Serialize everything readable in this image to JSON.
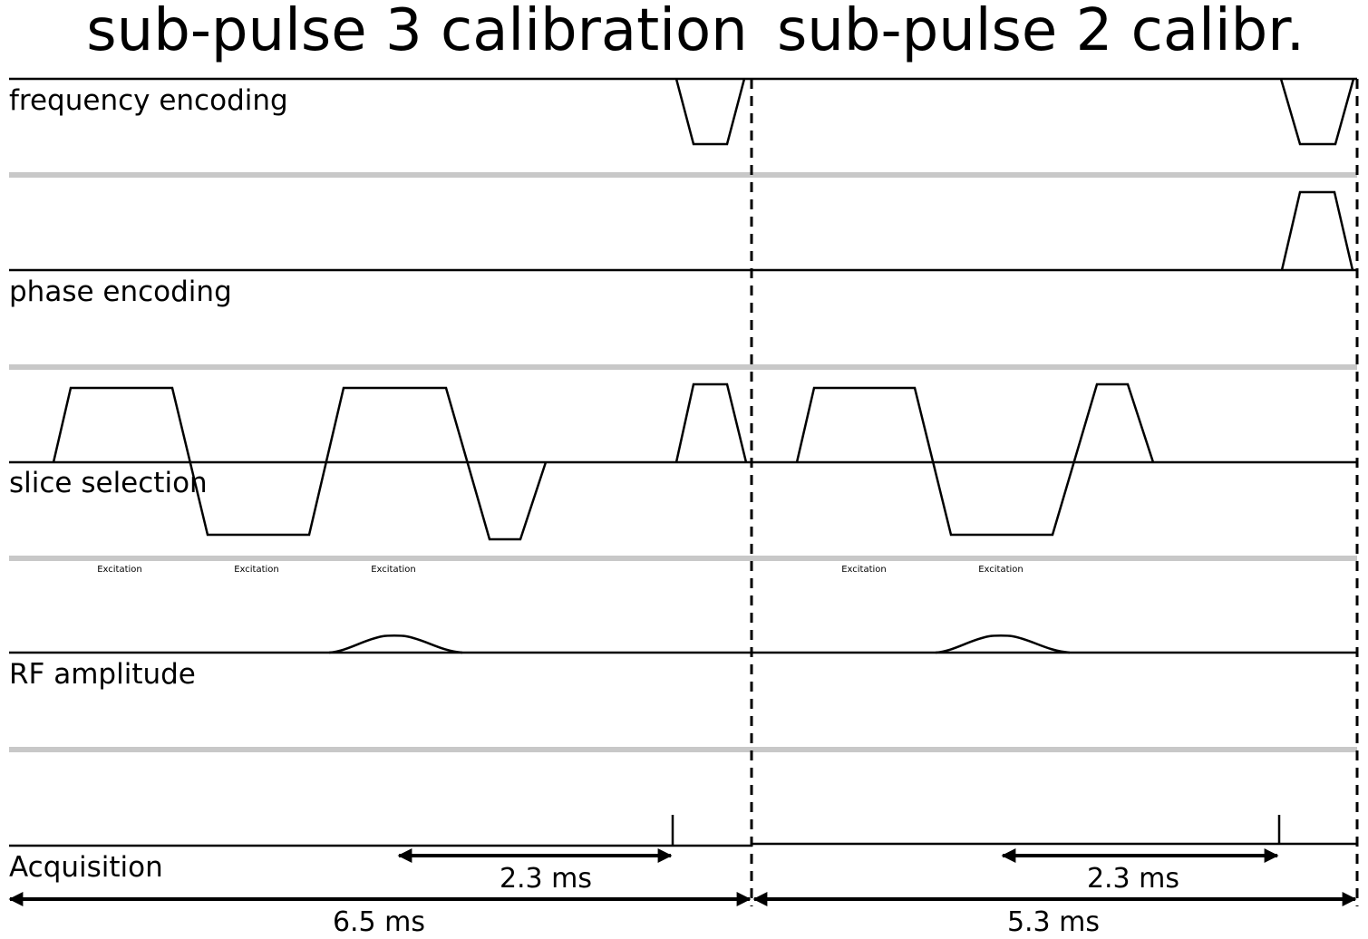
{
  "titles": {
    "left": "sub-pulse 3 calibration",
    "right": "sub-pulse 2 calibr."
  },
  "channels": {
    "frequency": "frequency encoding",
    "phase": "phase encoding",
    "slice": "slice selection",
    "rf": "RF amplitude",
    "acquisition": "Acquisition"
  },
  "excitation_labels": [
    "Excitation",
    "Excitation",
    "Excitation",
    "Excitation",
    "Excitation"
  ],
  "durations": {
    "left_short": "2.3 ms",
    "left_total": "6.5 ms",
    "right_short": "2.3 ms",
    "right_total": "5.3 ms"
  }
}
